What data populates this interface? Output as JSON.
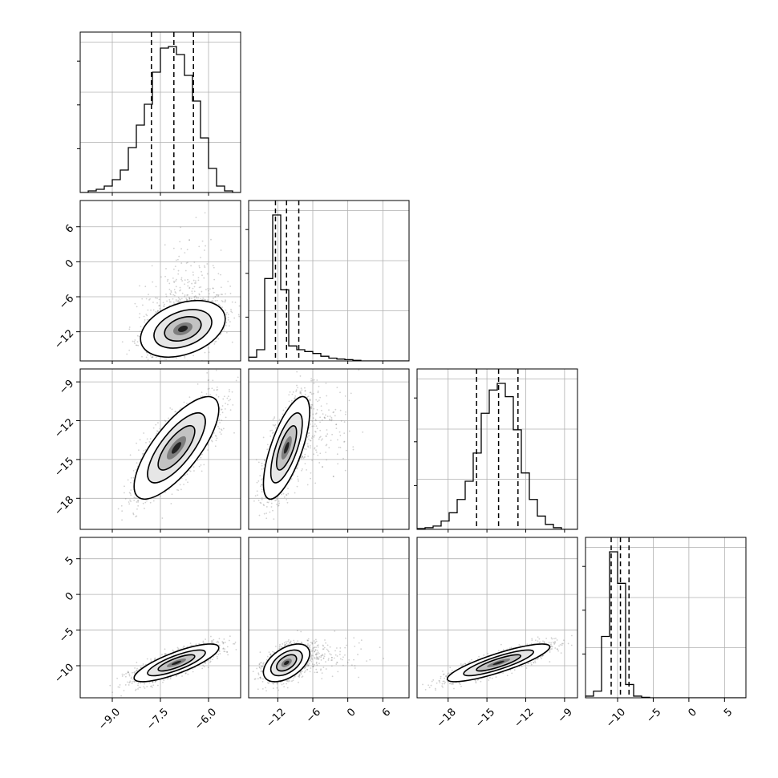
{
  "chart_data": {
    "type": "corner",
    "parameters": [
      "",
      "",
      "",
      ""
    ],
    "axes": [
      {
        "range": [
          -10.0,
          -5.0
        ],
        "ticks": [
          -9.0,
          -7.5,
          -6.0
        ],
        "tick_labels": [
          "−9.0",
          "−7.5",
          "−6.0"
        ]
      },
      {
        "range": [
          -17.0,
          10.5
        ],
        "ticks": [
          -12,
          -6,
          0,
          6
        ],
        "tick_labels": [
          "−12",
          "−6",
          "0",
          "6"
        ]
      },
      {
        "range": [
          -20.4,
          -8.0
        ],
        "ticks": [
          -18,
          -15,
          -12,
          -9
        ],
        "tick_labels": [
          "−18",
          "−15",
          "−12",
          "−9"
        ]
      },
      {
        "range": [
          -14.5,
          8.0
        ],
        "ticks": [
          -10,
          -5,
          0,
          5
        ],
        "tick_labels": [
          "−10",
          "−5",
          "0",
          "5"
        ]
      }
    ],
    "quantiles": [
      [
        -7.78,
        -7.08,
        -6.47
      ],
      [
        -12.4,
        -10.5,
        -8.4
      ],
      [
        -15.8,
        -14.1,
        -12.6
      ],
      [
        -10.9,
        -9.6,
        -8.4
      ]
    ],
    "histograms": [
      {
        "edges_start": -10.0,
        "bin_width": 0.25,
        "counts": [
          0,
          1,
          2,
          4,
          8,
          14,
          28,
          42,
          55,
          75,
          90,
          91,
          86,
          73,
          57,
          34,
          15,
          4,
          1,
          0
        ]
      },
      {
        "edges_start": -17.0,
        "bin_width": 1.375,
        "counts": [
          2,
          6,
          44,
          78,
          38,
          8,
          6,
          5,
          4,
          2.5,
          1.5,
          1,
          0.7,
          0.3,
          0,
          0,
          0,
          0,
          0,
          0
        ]
      },
      {
        "edges_start": -20.4,
        "bin_width": 0.62,
        "counts": [
          0.5,
          1,
          2,
          5,
          10,
          18,
          29,
          46,
          70,
          84,
          88,
          80,
          60,
          34,
          18,
          8,
          3,
          1,
          0,
          0
        ]
      },
      {
        "edges_start": -14.5,
        "bin_width": 1.125,
        "counts": [
          1,
          4,
          37,
          88,
          69,
          8,
          1,
          0.3,
          0,
          0,
          0,
          0,
          0,
          0,
          0,
          0,
          0,
          0,
          0,
          0
        ]
      }
    ],
    "pairs": [
      {
        "row": 1,
        "col": 0,
        "center": [
          -6.8,
          -11.5
        ],
        "sd": [
          0.6,
          2.2
        ],
        "rho": 0.35,
        "tail": [
          0,
          6
        ],
        "n": 2200
      },
      {
        "row": 2,
        "col": 0,
        "center": [
          -7.0,
          -14.1
        ],
        "sd": [
          0.6,
          1.8
        ],
        "rho": 0.75,
        "tail": [
          0,
          0
        ],
        "n": 2400
      },
      {
        "row": 2,
        "col": 1,
        "center": [
          -10.5,
          -14.1
        ],
        "sd": [
          1.8,
          1.8
        ],
        "rho": 0.7,
        "tail": [
          5,
          2
        ],
        "n": 2200
      },
      {
        "row": 3,
        "col": 0,
        "center": [
          -7.0,
          -9.6
        ],
        "sd": [
          0.6,
          1.2
        ],
        "rho": 0.8,
        "tail": [
          0,
          0
        ],
        "n": 2400
      },
      {
        "row": 3,
        "col": 1,
        "center": [
          -10.5,
          -9.6
        ],
        "sd": [
          1.8,
          1.2
        ],
        "rho": 0.5,
        "tail": [
          5,
          1.5
        ],
        "n": 2200
      },
      {
        "row": 3,
        "col": 2,
        "center": [
          -14.1,
          -9.6
        ],
        "sd": [
          1.8,
          1.2
        ],
        "rho": 0.85,
        "tail": [
          0,
          0
        ],
        "n": 2400
      }
    ],
    "grid": true,
    "legend": "none"
  }
}
